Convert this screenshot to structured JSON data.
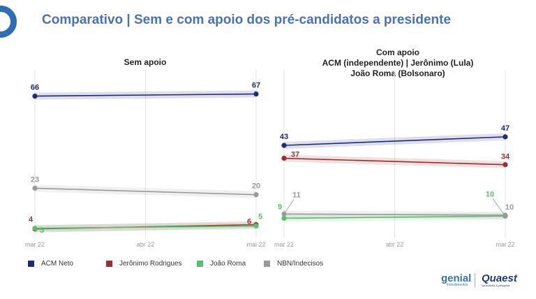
{
  "title": "Comparativo | Sem e com apoio dos pré-candidatos a presidente",
  "brands": {
    "genial": "genial",
    "genial_sub": "investimentos",
    "quaest": "Quaest",
    "quaest_sub": "consultoria & pesquisa"
  },
  "colors": {
    "ACM Neto": "#1f2a78",
    "Jerônimo Rodrigues": "#9b2f30",
    "João Roma": "#57c06c",
    "NBN/Indecisos": "#9a9a9a",
    "title": "#4a72b0"
  },
  "chart_data": [
    {
      "type": "line",
      "title": "Sem apoio",
      "x": [
        "mar 22",
        "abr 22",
        "mai 22"
      ],
      "ylim": [
        0,
        75
      ],
      "grid": "vertical",
      "series": [
        {
          "name": "ACM Neto",
          "points": [
            [
              "mar 22",
              66
            ],
            [
              "mai 22",
              67
            ]
          ],
          "labels": [
            "66",
            "67"
          ]
        },
        {
          "name": "Jerônimo Rodrigues",
          "points": [
            [
              "mar 22",
              4
            ],
            [
              "mai 22",
              6
            ]
          ],
          "labels": [
            "4",
            "6"
          ]
        },
        {
          "name": "João Roma",
          "points": [
            [
              "mar 22",
              5
            ],
            [
              "mai 22",
              5
            ]
          ],
          "labels": [
            "5",
            "5"
          ]
        },
        {
          "name": "NBN/Indecisos",
          "points": [
            [
              "mar 22",
              23
            ],
            [
              "mai 22",
              20
            ]
          ],
          "labels": [
            "23",
            "20"
          ]
        }
      ]
    },
    {
      "type": "line",
      "title": "Com apoio\nACM (independente) | Jerônimo (Lula)\nJoão Roma (Bolsonaro)",
      "title_lines": [
        "Com apoio",
        "ACM (independente) | Jerônimo (Lula)",
        "João Roma (Bolsonaro)"
      ],
      "x": [
        "mar 22",
        "abr 22",
        "mai 22"
      ],
      "ylim": [
        0,
        75
      ],
      "grid": "vertical",
      "series": [
        {
          "name": "ACM Neto",
          "points": [
            [
              "mar 22",
              43
            ],
            [
              "mai 22",
              47
            ]
          ],
          "labels": [
            "43",
            "47"
          ]
        },
        {
          "name": "Jerônimo Rodrigues",
          "points": [
            [
              "mar 22",
              37
            ],
            [
              "mai 22",
              34
            ]
          ],
          "labels": [
            "37",
            "34"
          ]
        },
        {
          "name": "João Roma",
          "points": [
            [
              "mar 22",
              9
            ],
            [
              "mai 22",
              10
            ]
          ],
          "labels": [
            "9",
            "10"
          ]
        },
        {
          "name": "NBN/Indecisos",
          "points": [
            [
              "mar 22",
              11
            ],
            [
              "mai 22",
              10
            ]
          ],
          "labels": [
            "11",
            "10"
          ]
        }
      ]
    }
  ],
  "legend": [
    "ACM Neto",
    "Jerônimo Rodrigues",
    "João Roma",
    "NBN/Indecisos"
  ]
}
